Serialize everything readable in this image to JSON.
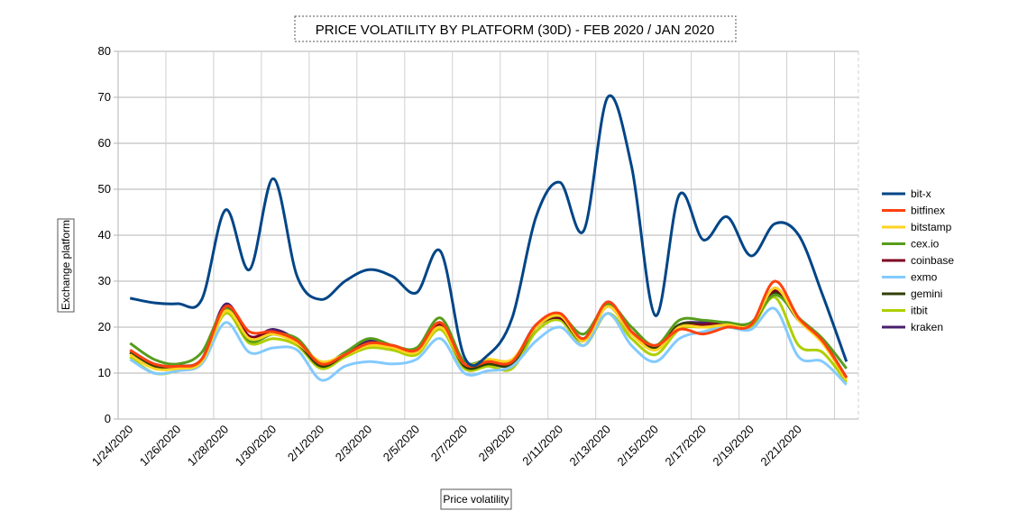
{
  "chart_data": {
    "type": "line",
    "title": "PRICE VOLATILITY BY PLATFORM (30D) - FEB 2020 / JAN 2020",
    "x_label": "Price volatility",
    "y_label": "Exchange platform",
    "categories": [
      "1/24/2020",
      null,
      "1/26/2020",
      null,
      "1/28/2020",
      null,
      "1/30/2020",
      null,
      "2/1/2020",
      null,
      "2/3/2020",
      null,
      "2/5/2020",
      null,
      "2/7/2020",
      null,
      "2/9/2020",
      null,
      "2/11/2020",
      null,
      "2/13/2020",
      null,
      "2/15/2020",
      null,
      "2/17/2020",
      null,
      "2/19/2020",
      null,
      "2/21/2020",
      null,
      null
    ],
    "ylim": [
      0,
      80
    ],
    "yticks": [
      0,
      10,
      20,
      30,
      40,
      50,
      60,
      70,
      80
    ],
    "grid": true,
    "legend": "right",
    "series": [
      {
        "name": "bit-x",
        "color": "#004586",
        "values": [
          26.3,
          25.3,
          25.1,
          26,
          45.5,
          32.5,
          52.3,
          31,
          26,
          30,
          32.5,
          31,
          27.5,
          36.5,
          13.5,
          14,
          22,
          44,
          51.5,
          41,
          70,
          55,
          22.5,
          48.8,
          39,
          44,
          35.5,
          42.5,
          40,
          27,
          12.5
        ]
      },
      {
        "name": "bitfinex",
        "color": "#ff420e",
        "values": [
          15,
          12,
          11.5,
          13,
          24.5,
          19,
          19,
          17,
          12,
          14,
          16.5,
          16,
          15,
          21,
          12,
          12.5,
          12.5,
          20.5,
          23,
          17.5,
          25.5,
          19,
          16,
          19.5,
          18.5,
          20,
          20.5,
          30,
          22,
          17,
          9
        ]
      },
      {
        "name": "bitstamp",
        "color": "#ffd320",
        "values": [
          14,
          11,
          11,
          12.5,
          23.5,
          17.5,
          18.5,
          16.5,
          12.5,
          14,
          16,
          15.5,
          14.5,
          20,
          12,
          13,
          13,
          20,
          22.5,
          17,
          24.5,
          18.5,
          15,
          20,
          20,
          20.5,
          20.5,
          28.5,
          21.5,
          16.5,
          8.5
        ]
      },
      {
        "name": "cex.io",
        "color": "#579d1c",
        "values": [
          16.5,
          13,
          12,
          14.5,
          24,
          17,
          18.5,
          17.5,
          12,
          14.5,
          17.5,
          16,
          15.5,
          22,
          12.5,
          13,
          12.5,
          20,
          22.5,
          18.5,
          25,
          20,
          16,
          21.5,
          21.5,
          21,
          21,
          27,
          22,
          17.5,
          11
        ]
      },
      {
        "name": "coinbase",
        "color": "#7e0021",
        "values": [
          15,
          12,
          11.5,
          13,
          24.5,
          18,
          19,
          17,
          12,
          14,
          16.5,
          16,
          15,
          20.5,
          12,
          12.5,
          12.5,
          20,
          22,
          17.5,
          25,
          19,
          16,
          20,
          20.5,
          21,
          20.5,
          28,
          22,
          17,
          9
        ]
      },
      {
        "name": "exmo",
        "color": "#83caff",
        "values": [
          13,
          10,
          10.5,
          12,
          21,
          14.5,
          15.5,
          15,
          8.5,
          11.5,
          12.5,
          12,
          13,
          17.5,
          10,
          10.5,
          11.5,
          17,
          20,
          16,
          23,
          16,
          12.5,
          17.5,
          19,
          20,
          19.5,
          24,
          13.5,
          12.5,
          7.5
        ]
      },
      {
        "name": "gemini",
        "color": "#314004",
        "values": [
          14.5,
          11.5,
          11.5,
          13,
          24,
          17.5,
          18.5,
          16.5,
          11.5,
          14,
          16.5,
          15.5,
          15,
          20.5,
          11.5,
          12,
          12,
          20,
          22,
          17,
          24.5,
          18.5,
          15.5,
          20.5,
          20.5,
          20.5,
          20.5,
          27.5,
          21.5,
          17,
          9
        ]
      },
      {
        "name": "itbit",
        "color": "#aecf00",
        "values": [
          13.5,
          10,
          10.5,
          12.5,
          23,
          16.5,
          17.5,
          16,
          11,
          13.5,
          15.5,
          15,
          14,
          19.5,
          11,
          11.5,
          11,
          19,
          21.5,
          16,
          23,
          17.5,
          14,
          19.5,
          20,
          20,
          20,
          26.5,
          16,
          14.5,
          8
        ]
      },
      {
        "name": "kraken",
        "color": "#4b1f6f",
        "values": [
          14.5,
          11.5,
          11.5,
          13,
          25,
          18,
          19.5,
          17,
          11.5,
          14.5,
          17,
          16,
          15,
          21,
          12,
          12.5,
          12.5,
          20.5,
          22,
          17.5,
          25.5,
          19,
          16,
          20.5,
          21,
          21,
          20.5,
          28.5,
          21.5,
          17,
          9
        ]
      }
    ]
  }
}
